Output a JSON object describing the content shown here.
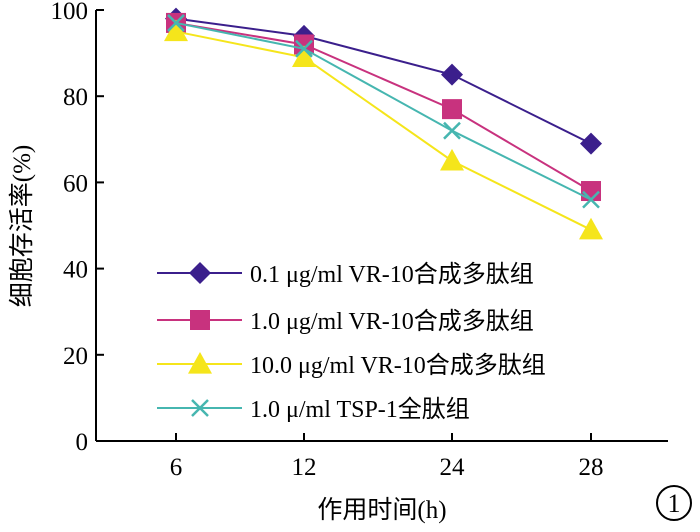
{
  "chart_data": {
    "type": "line",
    "categories": [
      "6",
      "12",
      "24",
      "28"
    ],
    "xlabel": "作用时间(h)",
    "ylabel": "细胞存活率(%)",
    "ylim": [
      0,
      100
    ],
    "yticks": [
      "0",
      "20",
      "40",
      "60",
      "80",
      "100"
    ],
    "grid": false,
    "legend_position": "bottom-left",
    "panel_label": "1",
    "series": [
      {
        "name": "0.1 μg/ml VR-10合成多肽组",
        "marker": "diamond",
        "color": "#3b1f8c",
        "values": [
          98,
          94,
          85,
          69
        ]
      },
      {
        "name": "1.0 μg/ml VR-10合成多肽组",
        "marker": "square",
        "color": "#c8327e",
        "values": [
          97,
          92,
          77,
          58
        ]
      },
      {
        "name": "10.0 μg/ml VR-10合成多肽组",
        "marker": "triangle",
        "color": "#f5e51b",
        "values": [
          95,
          89,
          65,
          49
        ]
      },
      {
        "name": "1.0 μ/ml TSP-1全肽组",
        "marker": "x",
        "color": "#46b6b0",
        "values": [
          97,
          91,
          72,
          56
        ]
      }
    ]
  }
}
